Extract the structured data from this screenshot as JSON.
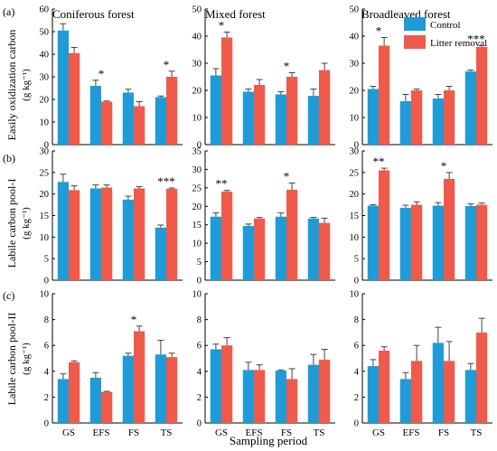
{
  "figure": {
    "xlabel": "Sampling period",
    "ylabel_unit": "(g kg⁻¹)",
    "row_titles": [
      "Easily oxidization carbon",
      "Labile carbon pool-I",
      "Labile carbon pool-II"
    ],
    "row_letters": [
      "(a)",
      "(b)",
      "(c)"
    ],
    "column_titles": [
      "Coniferous forest",
      "Mixed forest",
      "Broadleaved forest"
    ],
    "legend": [
      {
        "label": "Control",
        "color": "#1f9bd7"
      },
      {
        "label": "Litter removal",
        "color": "#f05a4a"
      }
    ],
    "colors": {
      "control": "#1f9bd7",
      "litter_removal": "#f05a4a",
      "errorbar": "#444444"
    }
  },
  "chart_data": [
    {
      "type": "bar",
      "row": 0,
      "col": 0,
      "categories": [
        "GS",
        "EFS",
        "FS",
        "TS"
      ],
      "ylim": [
        0,
        60
      ],
      "yticks": [
        0,
        10,
        20,
        30,
        40,
        50,
        60
      ],
      "series": [
        {
          "name": "Control",
          "values": [
            50.5,
            26,
            23,
            21
          ],
          "errors": [
            3,
            2.5,
            1.5,
            0.5
          ]
        },
        {
          "name": "Litter removal",
          "values": [
            40.5,
            19,
            17,
            30
          ],
          "errors": [
            2.5,
            0.3,
            2,
            2.5
          ]
        }
      ],
      "annotations": [
        {
          "category": "EFS",
          "text": "*"
        },
        {
          "category": "TS",
          "text": "*"
        }
      ]
    },
    {
      "type": "bar",
      "row": 0,
      "col": 1,
      "categories": [
        "GS",
        "EFS",
        "FS",
        "TS"
      ],
      "ylim": [
        0,
        50
      ],
      "yticks": [
        0,
        10,
        20,
        30,
        40,
        50
      ],
      "series": [
        {
          "name": "Control",
          "values": [
            25.5,
            19.5,
            18.5,
            18
          ],
          "errors": [
            2.5,
            1,
            1,
            2.5
          ]
        },
        {
          "name": "Litter removal",
          "values": [
            39.5,
            22,
            25,
            27.5
          ],
          "errors": [
            2,
            2,
            1.5,
            2.5
          ]
        }
      ],
      "annotations": [
        {
          "category": "GS",
          "text": "*"
        },
        {
          "category": "FS",
          "text": "*"
        }
      ]
    },
    {
      "type": "bar",
      "row": 0,
      "col": 2,
      "categories": [
        "GS",
        "EFS",
        "FS",
        "TS"
      ],
      "ylim": [
        0,
        50
      ],
      "yticks": [
        0,
        10,
        20,
        30,
        40,
        50
      ],
      "series": [
        {
          "name": "Control",
          "values": [
            20.5,
            16,
            17,
            27
          ],
          "errors": [
            1,
            2.5,
            1.5,
            0.5
          ]
        },
        {
          "name": "Litter removal",
          "values": [
            36.5,
            20,
            20,
            36
          ],
          "errors": [
            3,
            0.5,
            1.5,
            0.5
          ]
        }
      ],
      "annotations": [
        {
          "category": "GS",
          "text": "*"
        },
        {
          "category": "TS",
          "text": "***"
        }
      ]
    },
    {
      "type": "bar",
      "row": 1,
      "col": 0,
      "categories": [
        "GS",
        "EFS",
        "FS",
        "TS"
      ],
      "ylim": [
        0,
        30
      ],
      "yticks": [
        0,
        5,
        10,
        15,
        20,
        25,
        30
      ],
      "series": [
        {
          "name": "Control",
          "values": [
            22.8,
            21.3,
            18.7,
            12.2
          ],
          "errors": [
            1.8,
            0.8,
            0.8,
            0.6
          ]
        },
        {
          "name": "Litter removal",
          "values": [
            20.9,
            21.5,
            21.3,
            21.2
          ],
          "errors": [
            1,
            0.6,
            0.4,
            0.2
          ]
        }
      ],
      "annotations": [
        {
          "category": "TS",
          "text": "***"
        }
      ]
    },
    {
      "type": "bar",
      "row": 1,
      "col": 1,
      "categories": [
        "GS",
        "EFS",
        "FS",
        "TS"
      ],
      "ylim": [
        0,
        35
      ],
      "yticks": [
        0,
        5,
        10,
        15,
        20,
        25,
        30,
        35
      ],
      "series": [
        {
          "name": "Control",
          "values": [
            17.2,
            14.7,
            17.2,
            16.7
          ],
          "errors": [
            1,
            0.5,
            1,
            0.3
          ]
        },
        {
          "name": "Litter removal",
          "values": [
            24,
            16.7,
            24.5,
            15.5
          ],
          "errors": [
            0.3,
            0.3,
            1.8,
            1.3
          ]
        }
      ],
      "annotations": [
        {
          "category": "GS",
          "text": "**"
        },
        {
          "category": "FS",
          "text": "*"
        }
      ]
    },
    {
      "type": "bar",
      "row": 1,
      "col": 2,
      "categories": [
        "GS",
        "EFS",
        "FS",
        "TS"
      ],
      "ylim": [
        0,
        30
      ],
      "yticks": [
        0,
        5,
        10,
        15,
        20,
        25,
        30
      ],
      "series": [
        {
          "name": "Control",
          "values": [
            17.3,
            16.8,
            17.3,
            17.2
          ],
          "errors": [
            0.2,
            0.6,
            0.7,
            0.5
          ]
        },
        {
          "name": "Litter removal",
          "values": [
            25.5,
            17.5,
            23.5,
            17.5
          ],
          "errors": [
            0.5,
            0.7,
            1.5,
            0.4
          ]
        }
      ],
      "annotations": [
        {
          "category": "GS",
          "text": "**"
        },
        {
          "category": "FS",
          "text": "*"
        }
      ]
    },
    {
      "type": "bar",
      "row": 2,
      "col": 0,
      "categories": [
        "GS",
        "EFS",
        "FS",
        "TS"
      ],
      "ylim": [
        0,
        10
      ],
      "yticks": [
        0,
        2,
        4,
        6,
        8,
        10
      ],
      "series": [
        {
          "name": "Control",
          "values": [
            3.4,
            3.5,
            5.2,
            5.3
          ],
          "errors": [
            0.4,
            0.4,
            0.2,
            1.1
          ]
        },
        {
          "name": "Litter removal",
          "values": [
            4.7,
            2.4,
            7.1,
            5.1
          ],
          "errors": [
            0.1,
            0.05,
            0.4,
            0.3
          ]
        }
      ],
      "annotations": [
        {
          "category": "FS",
          "text": "*"
        }
      ]
    },
    {
      "type": "bar",
      "row": 2,
      "col": 1,
      "categories": [
        "GS",
        "EFS",
        "FS",
        "TS"
      ],
      "ylim": [
        0,
        10
      ],
      "yticks": [
        0,
        2,
        4,
        6,
        8,
        10
      ],
      "series": [
        {
          "name": "Control",
          "values": [
            5.7,
            4.1,
            4.05,
            4.5
          ],
          "errors": [
            0.4,
            0.6,
            0.05,
            0.8
          ]
        },
        {
          "name": "Litter removal",
          "values": [
            6.0,
            4.1,
            3.4,
            4.9
          ],
          "errors": [
            0.6,
            0.4,
            0.8,
            0.8
          ]
        }
      ],
      "annotations": []
    },
    {
      "type": "bar",
      "row": 2,
      "col": 2,
      "categories": [
        "GS",
        "EFS",
        "FS",
        "TS"
      ],
      "ylim": [
        0,
        10
      ],
      "yticks": [
        0,
        2,
        4,
        6,
        8,
        10
      ],
      "series": [
        {
          "name": "Control",
          "values": [
            4.4,
            3.4,
            6.2,
            4.1
          ],
          "errors": [
            0.5,
            0.5,
            1.2,
            0.5
          ]
        },
        {
          "name": "Litter removal",
          "values": [
            5.6,
            4.8,
            4.8,
            7.0
          ],
          "errors": [
            0.3,
            1.2,
            1.5,
            1.1
          ]
        }
      ],
      "annotations": []
    }
  ]
}
